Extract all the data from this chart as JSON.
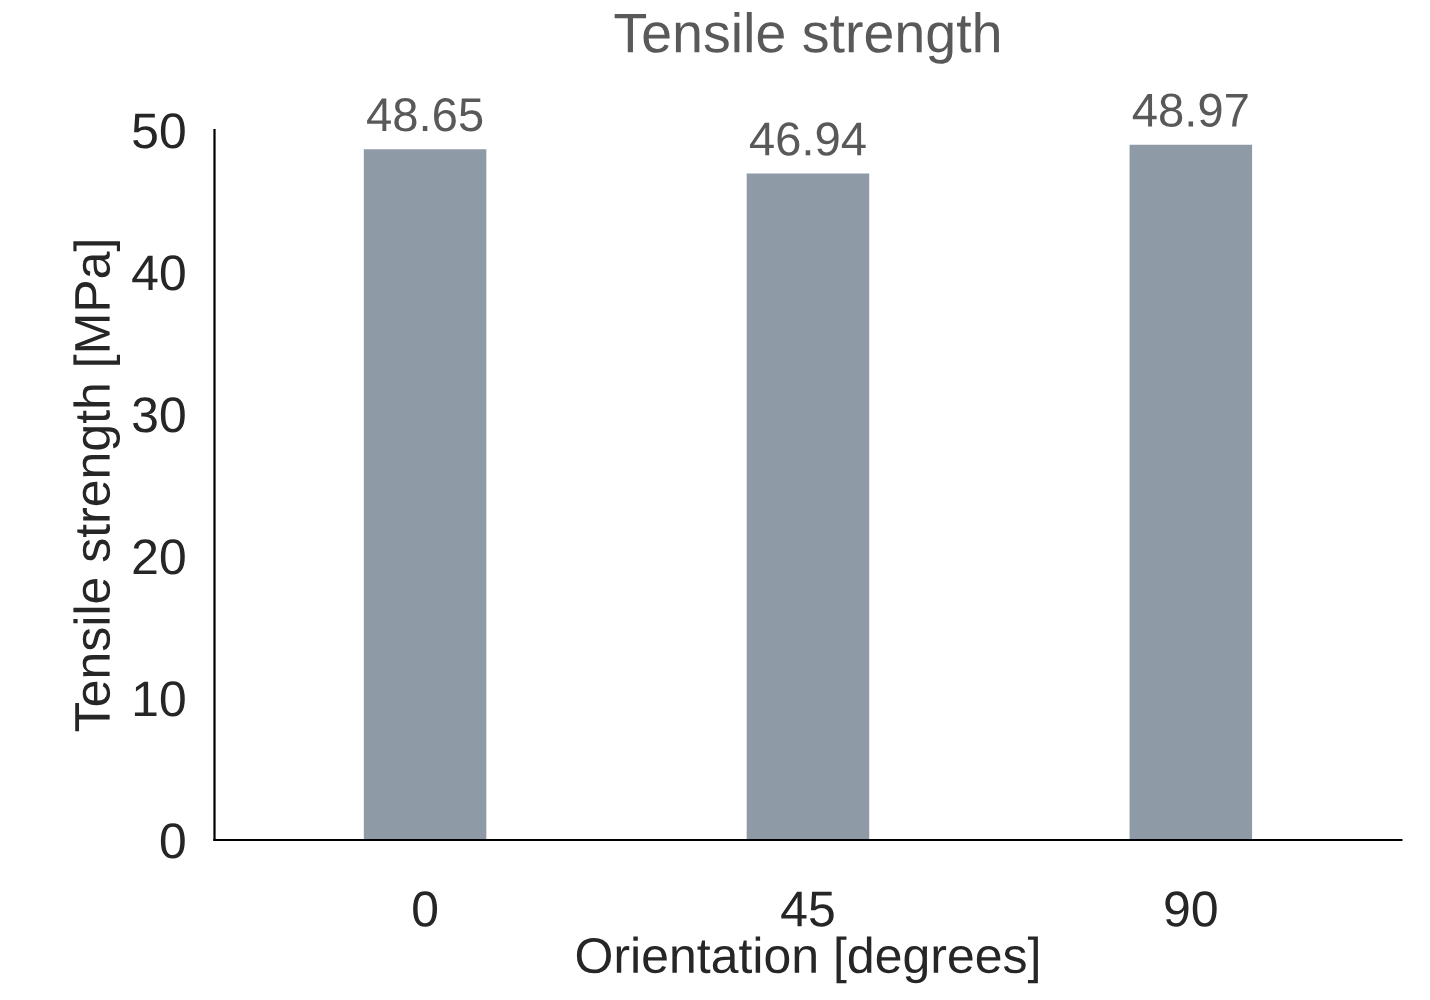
{
  "chart_data": {
    "type": "bar",
    "title": "Tensile strength",
    "xlabel": "Orientation [degrees]",
    "ylabel": "Tensile strength [MPa]",
    "categories": [
      "0",
      "45",
      "90"
    ],
    "values": [
      48.65,
      46.94,
      48.97
    ],
    "color": "#8e9aa6",
    "ylim": [
      0,
      50
    ],
    "yticks": [
      0,
      10,
      20,
      30,
      40,
      50
    ],
    "data_labels": true,
    "grid": false,
    "legend": false
  }
}
